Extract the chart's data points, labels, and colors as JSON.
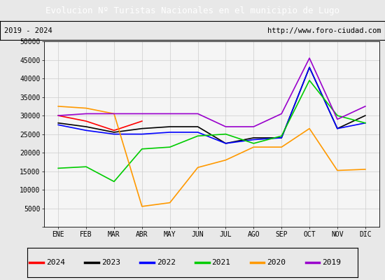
{
  "title": "Evolucion Nº Turistas Nacionales en el municipio de Lugo",
  "subtitle_left": "2019 - 2024",
  "subtitle_right": "http://www.foro-ciudad.com",
  "title_bg_color": "#4d86c8",
  "title_text_color": "#ffffff",
  "months": [
    "ENE",
    "FEB",
    "MAR",
    "ABR",
    "MAY",
    "JUN",
    "JUL",
    "AGO",
    "SEP",
    "OCT",
    "NOV",
    "DIC"
  ],
  "ylim": [
    0,
    50000
  ],
  "yticks": [
    0,
    5000,
    10000,
    15000,
    20000,
    25000,
    30000,
    35000,
    40000,
    45000,
    50000
  ],
  "series": {
    "2024": {
      "color": "#ff0000",
      "data": [
        30000,
        28500,
        26000,
        28500,
        null,
        null,
        null,
        null,
        null,
        null,
        null,
        null
      ]
    },
    "2023": {
      "color": "#000000",
      "data": [
        28000,
        27000,
        25500,
        26500,
        27000,
        27000,
        22500,
        24000,
        24000,
        43000,
        26500,
        30000
      ]
    },
    "2022": {
      "color": "#0000ff",
      "data": [
        27500,
        26000,
        25000,
        25000,
        25500,
        25500,
        22500,
        23500,
        24000,
        43000,
        26500,
        28000
      ]
    },
    "2021": {
      "color": "#00cc00",
      "data": [
        15800,
        16200,
        12200,
        21000,
        21500,
        24500,
        25000,
        22500,
        24500,
        39500,
        30000,
        28000
      ]
    },
    "2020": {
      "color": "#ff9900",
      "data": [
        32500,
        32000,
        30500,
        5500,
        6500,
        16000,
        18000,
        21500,
        21500,
        26500,
        15200,
        15500
      ]
    },
    "2019": {
      "color": "#9900cc",
      "data": [
        30000,
        30500,
        30500,
        30500,
        30500,
        30500,
        27000,
        27000,
        30500,
        45500,
        29000,
        32500
      ]
    }
  },
  "background_color": "#e8e8e8",
  "plot_bg_color": "#f5f5f5",
  "grid_color": "#cccccc",
  "border_color": "#000000"
}
